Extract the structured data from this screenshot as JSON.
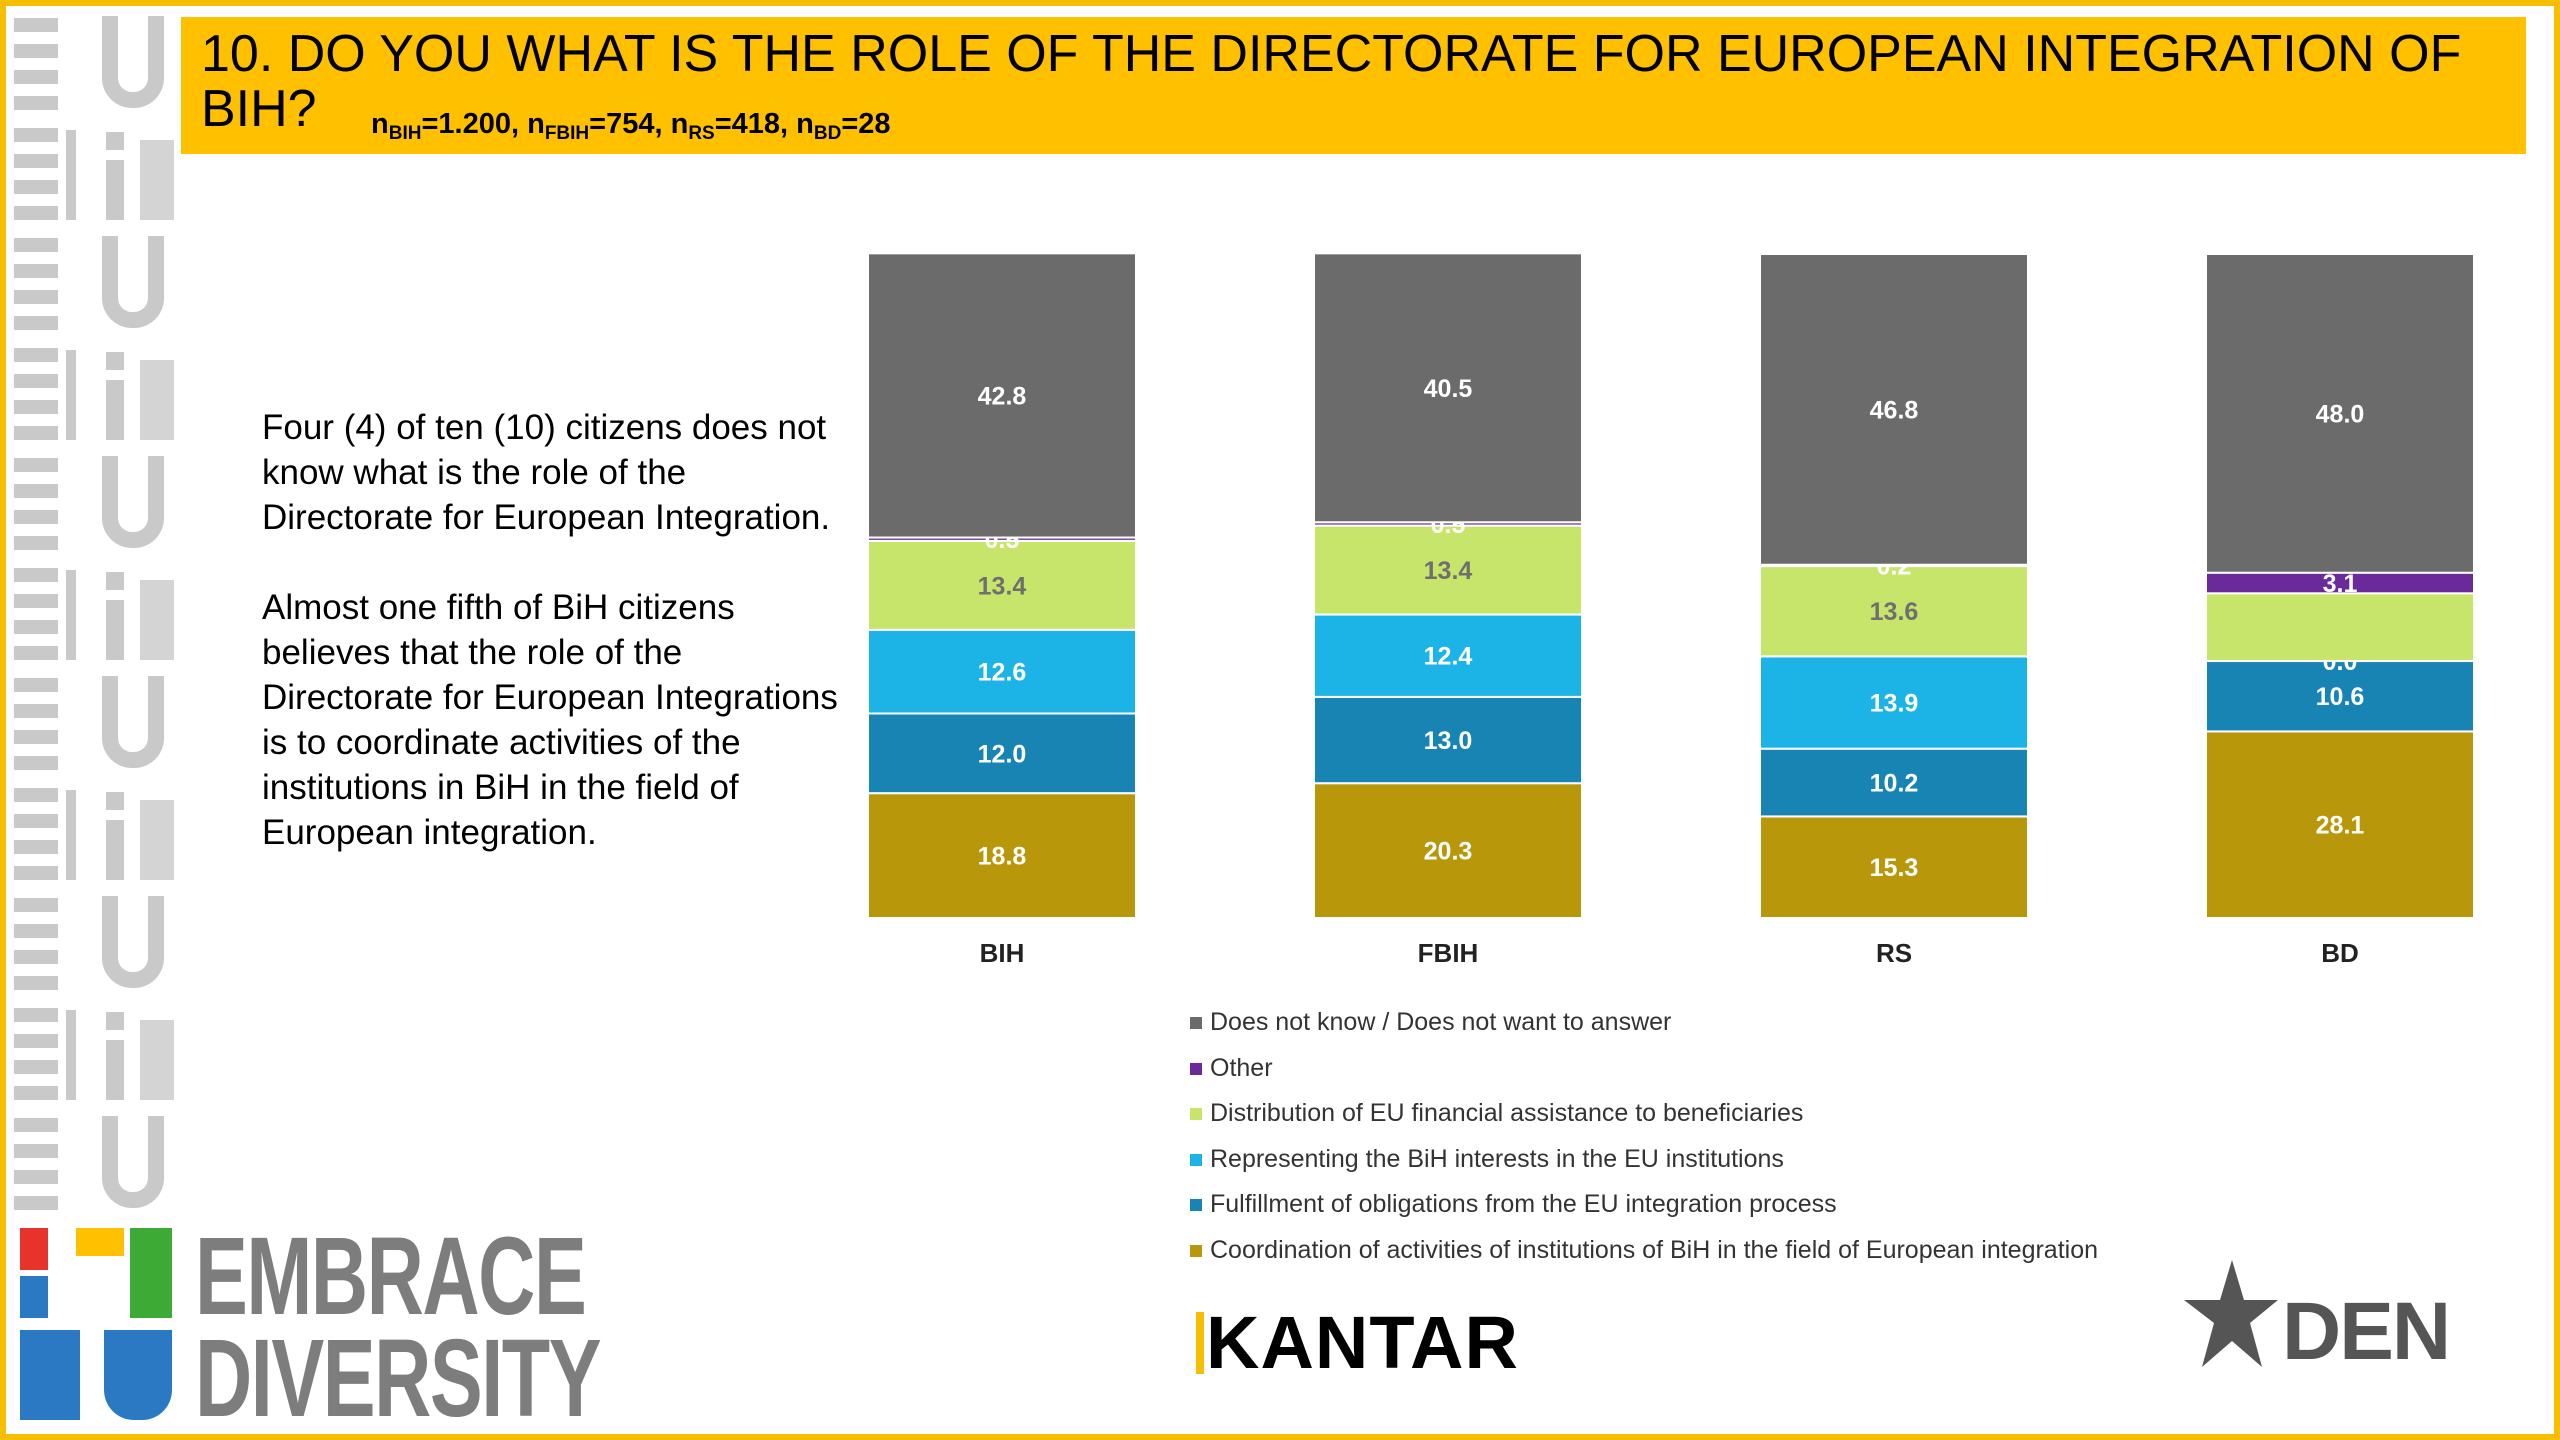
{
  "header": {
    "title": "10. DO YOU WHAT IS THE ROLE OF THE DIRECTORATE FOR EUROPEAN INTEGRATION OF BIH?",
    "sample": {
      "bih": "1.200",
      "fbih": "754",
      "rs": "418",
      "bd": "28",
      "labels": {
        "n": "n",
        "bih": "BIH",
        "fbih": "FBIH",
        "rs": "RS",
        "bd": "BD"
      }
    }
  },
  "summary": {
    "p1": "Four (4) of ten (10) citizens does not know what is the role of the Directorate for European Integration.",
    "p2": "Almost one fifth of BiH citizens believes that the role of the Directorate for European Integrations is to coordinate activities of the institutions in BiH in the field of European integration."
  },
  "logos": {
    "embrace_line1": "EMBRACE",
    "embrace_line2": "DIVERSITY",
    "kantar": "KANTAR",
    "den": "DEN",
    "bi_colors": [
      "#E7332B",
      "#2A79C2",
      "#FFC000",
      "#3DAA35"
    ]
  },
  "chart_data": {
    "type": "bar",
    "stacked": true,
    "categories": [
      "BIH",
      "FBIH",
      "RS",
      "BD"
    ],
    "series": [
      {
        "name": "Coordination of activities of institutions of BiH in the field of European integration",
        "color": "#B8980A",
        "values": [
          18.8,
          20.3,
          15.3,
          28.1
        ],
        "labels": [
          "18.8",
          "20.3",
          "15.3",
          "28.1"
        ]
      },
      {
        "name": "Fulfillment of obligations from the EU integration process",
        "color": "#1784B4",
        "values": [
          12.0,
          13.0,
          10.2,
          10.6
        ],
        "labels": [
          "12.0",
          "13.0",
          "10.2",
          "10.6"
        ]
      },
      {
        "name": "Representing the BiH interests in the EU institutions",
        "color": "#1CB3E6",
        "values": [
          12.6,
          12.4,
          13.9,
          0.0
        ],
        "labels": [
          "12.6",
          "12.4",
          "13.9",
          "0.0"
        ]
      },
      {
        "name": "Distribution of EU financial assistance to beneficiaries",
        "color": "#C7E56A",
        "values": [
          13.4,
          13.4,
          13.6,
          10.2
        ],
        "labels": [
          "13.4",
          "13.4",
          "13.6",
          ""
        ]
      },
      {
        "name": "Other",
        "color": "#6A2A9A",
        "values": [
          0.5,
          0.5,
          0.2,
          3.1
        ],
        "labels": [
          "0.5",
          "0.5",
          "0.2",
          "3.1"
        ]
      },
      {
        "name": "Does not know / Does not want to answer",
        "color": "#6B6B6B",
        "values": [
          42.8,
          40.5,
          46.8,
          48.0
        ],
        "labels": [
          "42.8",
          "40.5",
          "46.8",
          "48.0"
        ]
      }
    ],
    "legend_order": [
      5,
      4,
      3,
      2,
      1,
      0
    ],
    "ylim": [
      0,
      100
    ],
    "grid": false,
    "legend_position": "bottom"
  }
}
